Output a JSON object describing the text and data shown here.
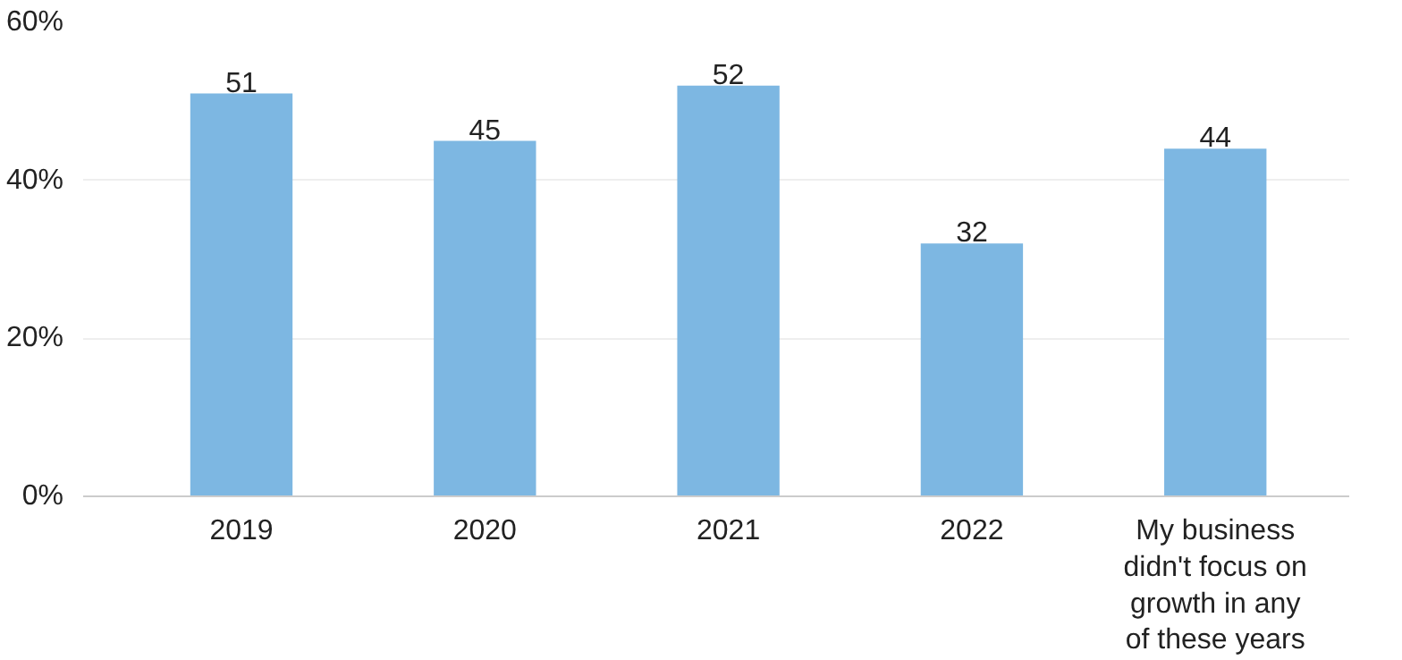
{
  "chart_data": {
    "type": "bar",
    "categories": [
      "2019",
      "2020",
      "2021",
      "2022",
      "My business didn't focus on growth in any of these years"
    ],
    "values": [
      51,
      45,
      52,
      32,
      44
    ],
    "color": "#7db7e2",
    "data_labels": true,
    "ylim": [
      0,
      60
    ],
    "yticks": [
      {
        "value": 0,
        "label": "0%"
      },
      {
        "value": 20,
        "label": "20%"
      },
      {
        "value": 40,
        "label": "40%"
      },
      {
        "value": 60,
        "label": "60%"
      }
    ],
    "grid": "y"
  }
}
